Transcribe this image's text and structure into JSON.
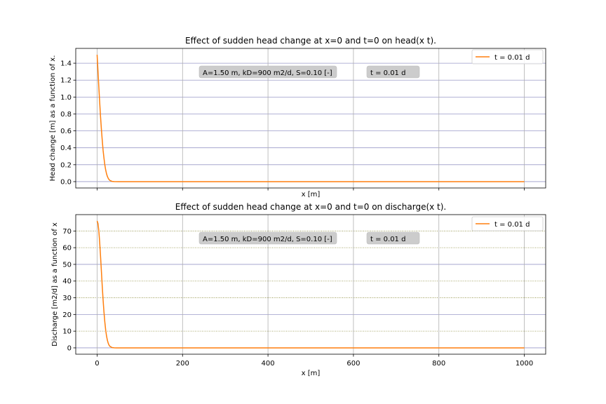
{
  "chart_data": [
    {
      "type": "line",
      "title": "Effect of sudden head change at x=0 and t=0 on head(x t).",
      "xlabel": "x [m]",
      "ylabel": "Head change [m] as a function of x.",
      "xlim": [
        -50,
        1050
      ],
      "ylim": [
        -0.075,
        1.575
      ],
      "xticks": [
        0,
        200,
        400,
        600,
        800,
        1000
      ],
      "xtick_labels_shown": false,
      "yticks": [
        0.0,
        0.2,
        0.4,
        0.6,
        0.8,
        1.0,
        1.2,
        1.4
      ],
      "ytick_labels": [
        "0.0",
        "0.2",
        "0.4",
        "0.6",
        "0.8",
        "1.0",
        "1.2",
        "1.4"
      ],
      "grid": true,
      "legend_position": "top-right",
      "annotations": [
        "A=1.50 m, kD=900 m2/d, S=0.10 [-]",
        "t =     0.01 d"
      ],
      "series": [
        {
          "name": "t =     0.01 d",
          "color": "#ff7f0e",
          "x": [
            0,
            2,
            4,
            6,
            8,
            10,
            12,
            14,
            16,
            18,
            20,
            22,
            24,
            26,
            28,
            30,
            35,
            40,
            50,
            60,
            100,
            200,
            400,
            600,
            800,
            1000
          ],
          "y": [
            1.5,
            1.31,
            1.12,
            0.94,
            0.77,
            0.62,
            0.49,
            0.37,
            0.28,
            0.2,
            0.14,
            0.094,
            0.062,
            0.039,
            0.024,
            0.014,
            0.003,
            0.0005,
            0.0,
            0.0,
            0.0,
            0.0,
            0.0,
            0.0,
            0.0,
            0.0
          ]
        }
      ]
    },
    {
      "type": "line",
      "title": "Effect of sudden head change at x=0 and t=0 on discharge(x t).",
      "xlabel": "x [m]",
      "ylabel": "Discharge [m2/d] as a function of x",
      "xlim": [
        -50,
        1050
      ],
      "ylim": [
        -3.8,
        79.8
      ],
      "xticks": [
        0,
        200,
        400,
        600,
        800,
        1000
      ],
      "xtick_labels": [
        "0",
        "200",
        "400",
        "600",
        "800",
        "1000"
      ],
      "yticks": [
        0,
        10,
        20,
        30,
        40,
        50,
        60,
        70
      ],
      "ytick_labels": [
        "0",
        "10",
        "20",
        "30",
        "40",
        "50",
        "60",
        "70"
      ],
      "grid": true,
      "legend_position": "top-right",
      "annotations": [
        "A=1.50 m, kD=900 m2/d, S=0.10 [-]",
        "t =     0.01 d"
      ],
      "series": [
        {
          "name": "t =     0.01 d",
          "color": "#ff7f0e",
          "x": [
            0,
            2,
            4,
            6,
            8,
            10,
            12,
            14,
            16,
            18,
            20,
            22,
            24,
            26,
            28,
            30,
            35,
            40,
            45,
            50,
            60,
            100,
            200,
            400,
            600,
            800,
            1000
          ],
          "y": [
            76,
            74.5,
            70.1,
            63.3,
            55,
            46,
            37,
            28.8,
            21.6,
            15.6,
            10.8,
            7.2,
            4.6,
            2.8,
            1.6,
            0.9,
            0.2,
            0.04,
            0.0,
            0.0,
            0.0,
            0.0,
            0.0,
            0.0,
            0.0,
            0.0,
            0.0
          ]
        }
      ]
    }
  ]
}
